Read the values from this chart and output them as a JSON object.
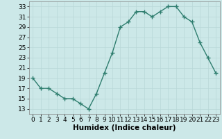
{
  "x": [
    0,
    1,
    2,
    3,
    4,
    5,
    6,
    7,
    8,
    9,
    10,
    11,
    12,
    13,
    14,
    15,
    16,
    17,
    18,
    19,
    20,
    21,
    22,
    23
  ],
  "y": [
    19,
    17,
    17,
    16,
    15,
    15,
    14,
    13,
    16,
    20,
    24,
    29,
    30,
    32,
    32,
    31,
    32,
    33,
    33,
    31,
    30,
    26,
    23,
    20
  ],
  "line_color": "#2e7d6e",
  "marker": "+",
  "marker_size": 4,
  "linewidth": 1.0,
  "xlabel": "Humidex (Indice chaleur)",
  "xlabel_fontsize": 7.5,
  "xlim": [
    -0.5,
    23.5
  ],
  "ylim": [
    12,
    34
  ],
  "yticks": [
    13,
    15,
    17,
    19,
    21,
    23,
    25,
    27,
    29,
    31,
    33
  ],
  "xticks": [
    0,
    1,
    2,
    3,
    4,
    5,
    6,
    7,
    8,
    9,
    10,
    11,
    12,
    13,
    14,
    15,
    16,
    17,
    18,
    19,
    20,
    21,
    22,
    23
  ],
  "background_color": "#cce8e8",
  "grid_color": "#b8d8d8",
  "tick_fontsize": 6.5,
  "figure_bg": "#cce8e8"
}
